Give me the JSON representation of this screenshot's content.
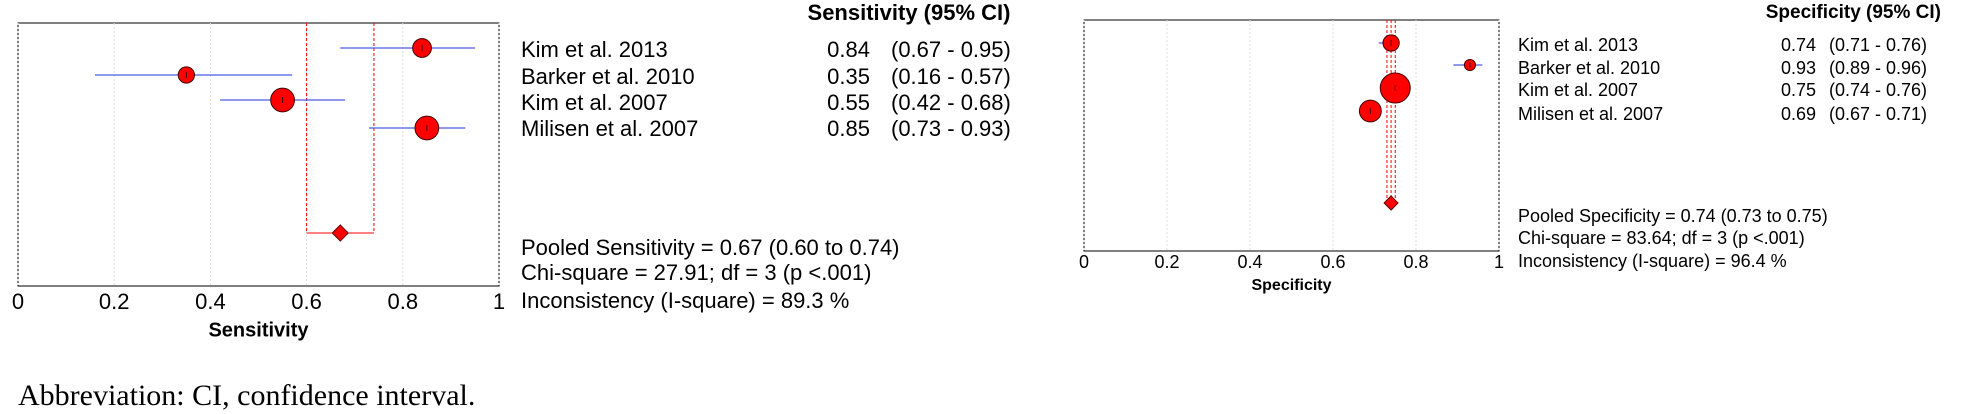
{
  "chart_data": [
    {
      "type": "forest",
      "header": "Sensitivity (95% CI)",
      "x_label": "Sensitivity",
      "categories": [
        "Kim et al. 2013",
        "Barker et al. 2010",
        "Kim et al. 2007",
        "Milisen et al. 2007"
      ],
      "values": [
        0.84,
        0.35,
        0.55,
        0.85
      ],
      "lower": [
        0.67,
        0.16,
        0.42,
        0.73
      ],
      "upper": [
        0.95,
        0.57,
        0.68,
        0.93
      ],
      "ci_labels": [
        "(0.67 - 0.95)",
        "(0.16 - 0.57)",
        "(0.42 - 0.68)",
        "(0.73 - 0.93)"
      ],
      "weights": [
        20,
        15,
        32,
        32
      ],
      "pooled": {
        "value": 0.67,
        "lower": 0.6,
        "upper": 0.74
      },
      "center_line": false,
      "stats": [
        "Pooled Sensitivity = 0.67 (0.60 to 0.74)",
        "Chi-square = 27.91; df =  3 (p <.001)",
        "Inconsistency (I-square) = 89.3 %"
      ],
      "xlim": [
        0,
        1
      ],
      "xticks": [
        0,
        0.2,
        0.4,
        0.6,
        0.8,
        1
      ],
      "grid": true,
      "marker_color": "#ff0000",
      "ci_color": "#4a5be0"
    },
    {
      "type": "forest",
      "header": "Specificity (95% CI)",
      "x_label": "Specificity",
      "categories": [
        "Kim et al. 2013",
        "Barker et al. 2010",
        "Kim et al. 2007",
        "Milisen et al. 2007"
      ],
      "values": [
        0.74,
        0.93,
        0.75,
        0.69
      ],
      "lower": [
        0.71,
        0.89,
        0.74,
        0.67
      ],
      "upper": [
        0.76,
        0.96,
        0.76,
        0.71
      ],
      "ci_labels": [
        "(0.71 - 0.76)",
        "(0.89 - 0.96)",
        "(0.74 - 0.76)",
        "(0.67 - 0.71)"
      ],
      "weights": [
        15,
        7,
        51,
        27
      ],
      "pooled": {
        "value": 0.74,
        "lower": 0.73,
        "upper": 0.75
      },
      "center_line": true,
      "stats": [
        "Pooled Specificity = 0.74 (0.73 to 0.75)",
        "Chi-square = 83.64; df =  3 (p <.001)",
        "Inconsistency (I-square) = 96.4 %"
      ],
      "xlim": [
        0,
        1
      ],
      "xticks": [
        0,
        0.2,
        0.4,
        0.6,
        0.8,
        1
      ],
      "grid": true,
      "marker_color": "#ff0000",
      "ci_color": "#4a5be0"
    }
  ],
  "footnote": "Abbreviation: CI, confidence interval."
}
